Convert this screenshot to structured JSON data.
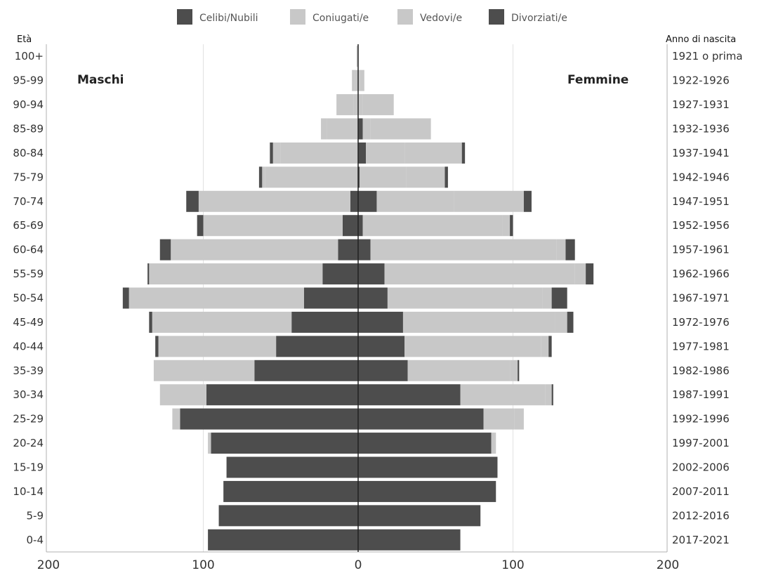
{
  "chart_data": {
    "type": "bar",
    "subtype": "population-pyramid",
    "orientation": "horizontal",
    "stacked": true,
    "xlim": [
      -200,
      200
    ],
    "x_ticks": [
      200,
      100,
      0,
      100,
      200
    ],
    "grid": true,
    "legend_position": "top",
    "left_axis_title": "Età",
    "right_axis_title": "Anno di nascita",
    "left_group_label": "Maschi",
    "right_group_label": "Femmine",
    "categories": [
      "100+",
      "95-99",
      "90-94",
      "85-89",
      "80-84",
      "75-79",
      "70-74",
      "65-69",
      "60-64",
      "55-59",
      "50-54",
      "45-49",
      "40-44",
      "35-39",
      "30-34",
      "25-29",
      "20-24",
      "15-19",
      "10-14",
      "5-9",
      "0-4"
    ],
    "birth_years": [
      "1921 o prima",
      "1922-1926",
      "1927-1931",
      "1932-1936",
      "1937-1941",
      "1942-1946",
      "1947-1951",
      "1952-1956",
      "1957-1961",
      "1962-1966",
      "1967-1971",
      "1972-1976",
      "1977-1981",
      "1982-1986",
      "1987-1991",
      "1992-1996",
      "1997-2001",
      "2002-2006",
      "2007-2011",
      "2012-2016",
      "2017-2021"
    ],
    "series_names": [
      "Celibi/Nubili",
      "Coniugati/e",
      "Vedovi/e",
      "Divorziati/e"
    ],
    "series_colors": [
      "#4d4d4d",
      "#c8c8c8",
      "#c8c8c8",
      "#4d4d4d"
    ],
    "males": {
      "Celibi/Nubili": [
        0,
        0,
        0,
        0,
        0,
        0,
        5,
        10,
        13,
        23,
        35,
        43,
        53,
        67,
        98,
        115,
        95,
        85,
        87,
        90,
        97
      ],
      "Coniugati/e": [
        0,
        2,
        3,
        20,
        50,
        60,
        98,
        90,
        108,
        112,
        113,
        90,
        76,
        65,
        30,
        5,
        2,
        0,
        0,
        0,
        0
      ],
      "Vedovi/e": [
        1,
        2,
        11,
        4,
        5,
        2,
        0,
        0,
        0,
        0,
        0,
        0,
        0,
        0,
        0,
        0,
        0,
        0,
        0,
        0,
        0
      ],
      "Divorziati/e": [
        0,
        0,
        0,
        0,
        2,
        2,
        8,
        4,
        7,
        1,
        4,
        2,
        2,
        0,
        0,
        0,
        0,
        0,
        0,
        0,
        0
      ]
    },
    "females": {
      "Celibi/Nubili": [
        0,
        0,
        0,
        3,
        5,
        1,
        12,
        3,
        8,
        17,
        19,
        29,
        30,
        32,
        66,
        81,
        86,
        90,
        89,
        79,
        66
      ],
      "Coniugati/e": [
        0,
        1,
        3,
        5,
        25,
        30,
        50,
        90,
        120,
        123,
        100,
        98,
        88,
        66,
        55,
        20,
        2,
        0,
        0,
        0,
        0
      ],
      "Vedovi/e": [
        0,
        3,
        20,
        39,
        37,
        25,
        45,
        5,
        6,
        7,
        6,
        8,
        5,
        5,
        4,
        6,
        1,
        0,
        0,
        0,
        0
      ],
      "Divorziati/e": [
        0,
        0,
        0,
        0,
        2,
        2,
        5,
        2,
        6,
        5,
        10,
        4,
        2,
        1,
        1,
        0,
        0,
        0,
        0,
        0,
        0
      ]
    }
  }
}
